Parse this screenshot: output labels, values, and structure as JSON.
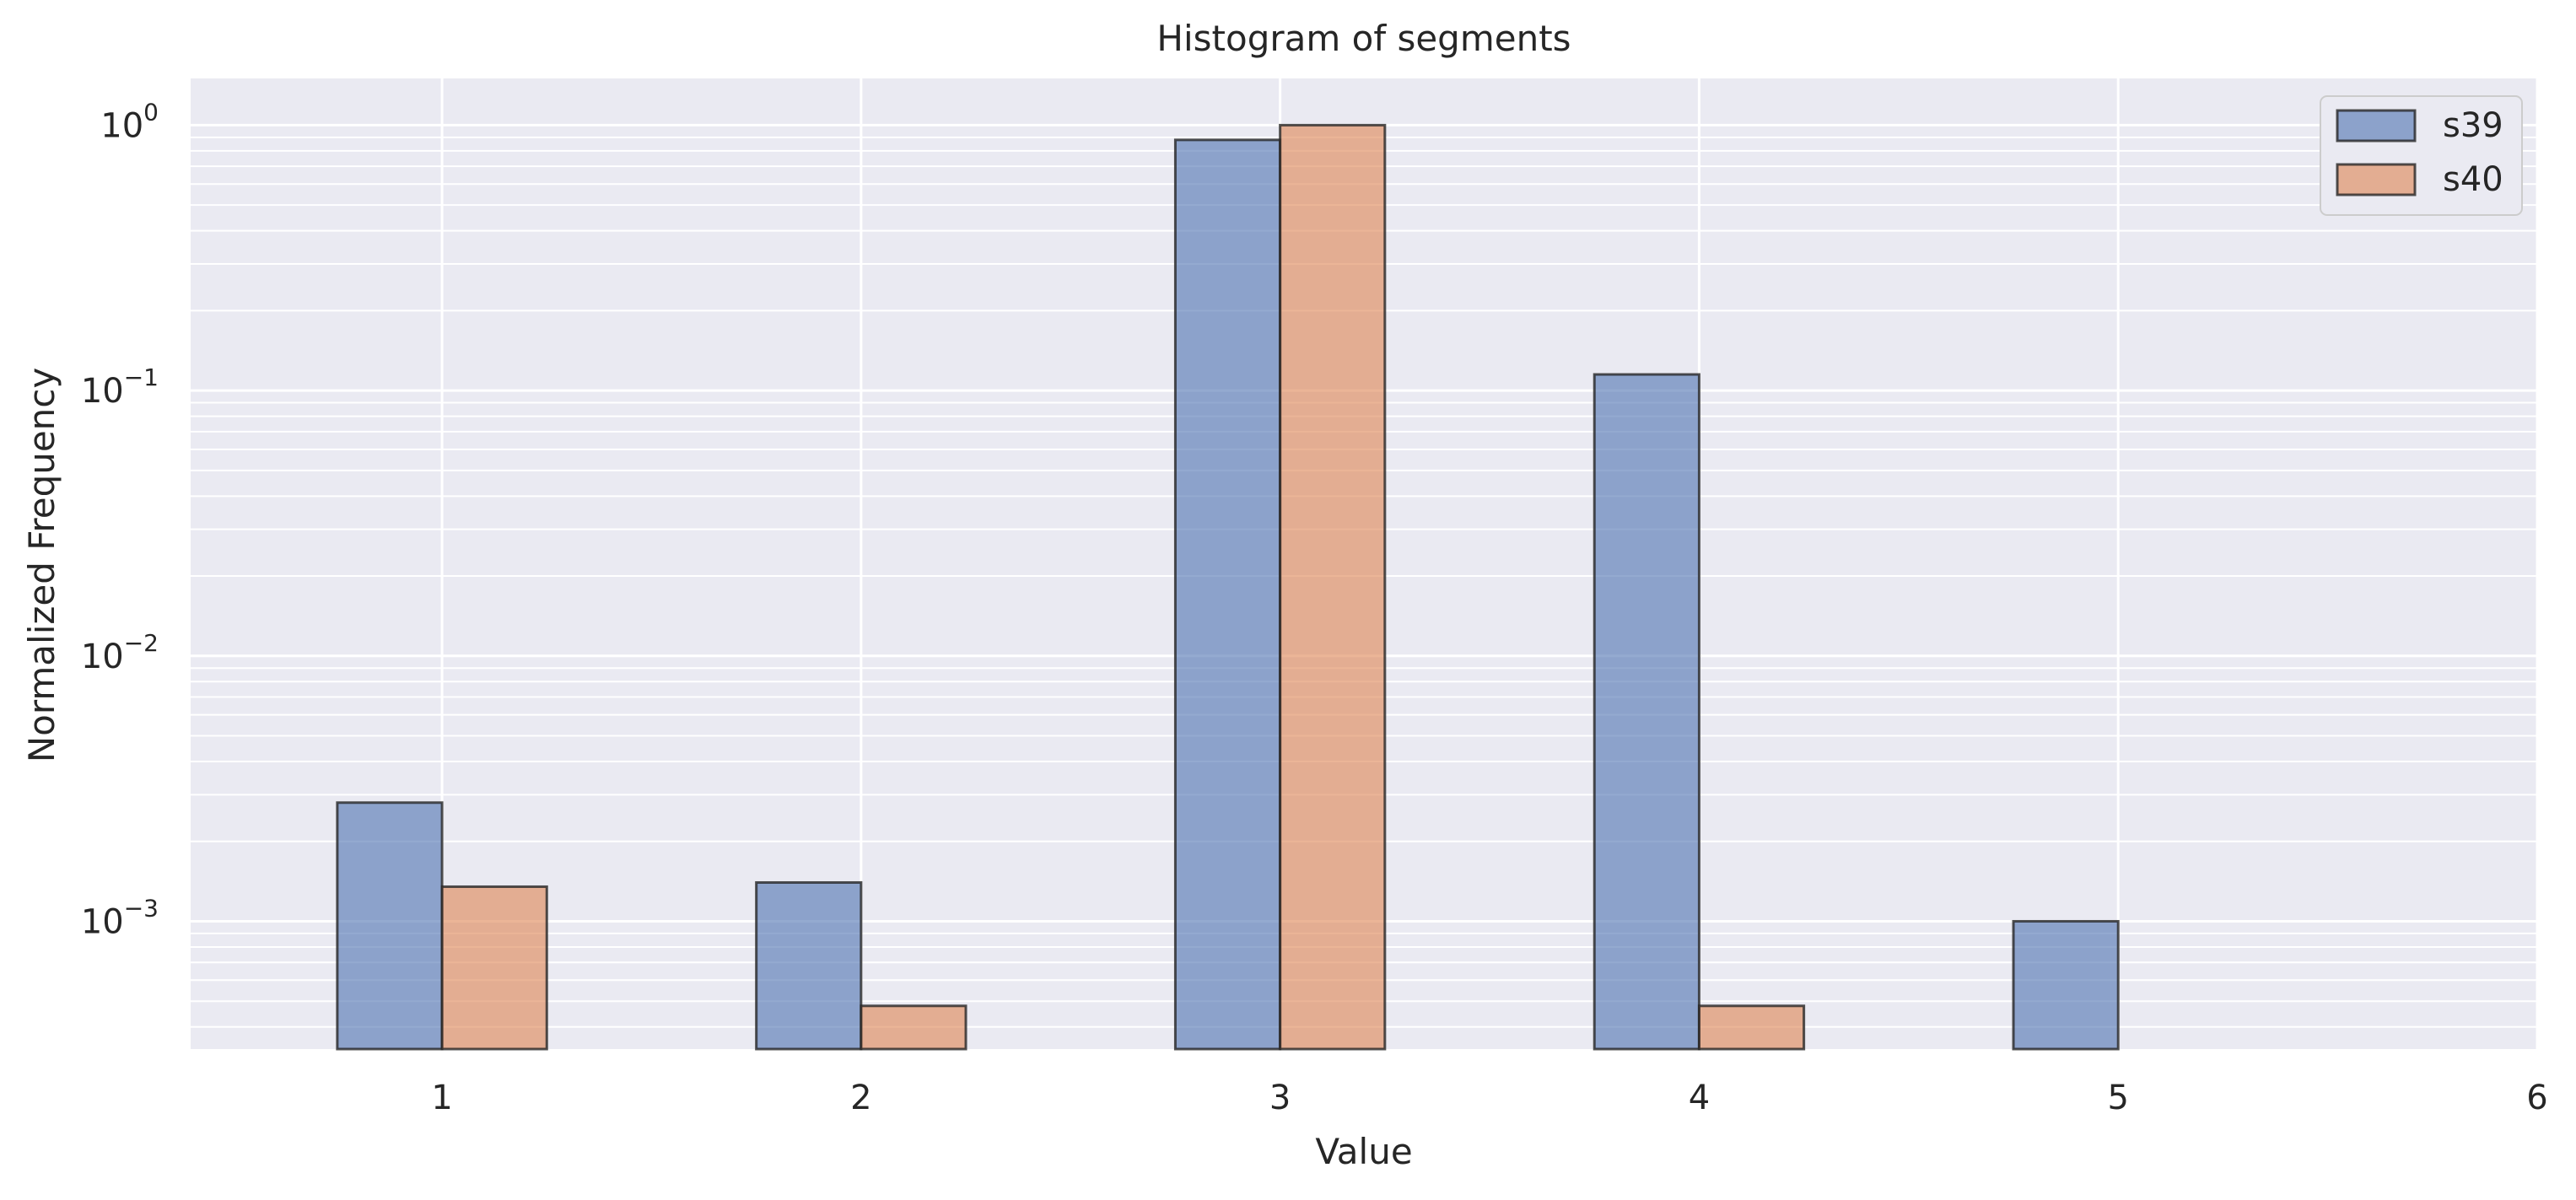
{
  "chart_data": {
    "type": "bar",
    "title": "Histogram of segments",
    "xlabel": "Value",
    "ylabel": "Normalized Frequency",
    "yscale": "log",
    "xlim": [
      0.4,
      6.0
    ],
    "ylim": [
      0.00033,
      1.5
    ],
    "x_ticks": [
      "1",
      "2",
      "3",
      "4",
      "5",
      "6"
    ],
    "y_ticks": [
      {
        "base": "10",
        "exp": "0",
        "value": 1
      },
      {
        "base": "10",
        "exp": "−1",
        "value": 0.1
      },
      {
        "base": "10",
        "exp": "−2",
        "value": 0.01
      },
      {
        "base": "10",
        "exp": "−3",
        "value": 0.001
      }
    ],
    "categories": [
      1,
      2,
      3,
      4,
      5
    ],
    "series": [
      {
        "name": "s39",
        "color": "#4C72B0",
        "values": [
          0.0028,
          0.0014,
          0.88,
          0.115,
          0.001
        ]
      },
      {
        "name": "s40",
        "color": "#DD8452",
        "values": [
          0.00135,
          0.00048,
          1.0,
          0.00048,
          null
        ]
      }
    ],
    "grid": true,
    "legend": "top-right",
    "background": "#EAEAF2"
  }
}
